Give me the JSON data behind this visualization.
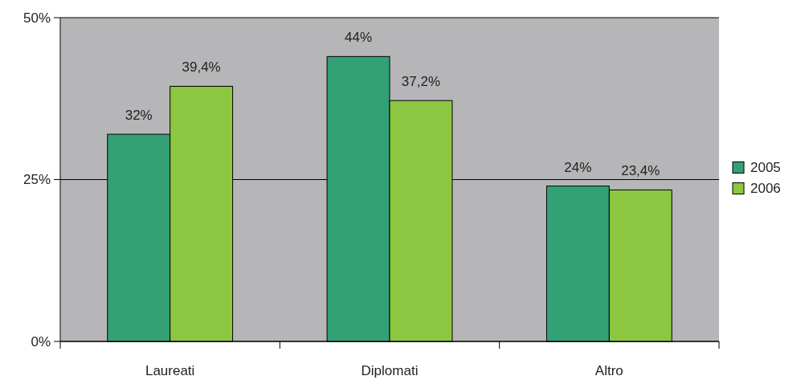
{
  "chart_data": {
    "type": "bar",
    "categories": [
      "Laureati",
      "Diplomati",
      "Altro"
    ],
    "series": [
      {
        "name": "2005",
        "color": "#33a175",
        "values": [
          32,
          44,
          24
        ],
        "value_labels": [
          "32%",
          "44%",
          "24%"
        ]
      },
      {
        "name": "2006",
        "color": "#8dc641",
        "values": [
          39.4,
          37.2,
          23.4
        ],
        "value_labels": [
          "39,4%",
          "37,2%",
          "23,4%"
        ]
      }
    ],
    "ylim": [
      0,
      50
    ],
    "yticks": [
      {
        "value": 0,
        "label": "0%"
      },
      {
        "value": 25,
        "label": "25%"
      },
      {
        "value": 50,
        "label": "50%"
      }
    ],
    "grid": "y",
    "legend": "right"
  }
}
